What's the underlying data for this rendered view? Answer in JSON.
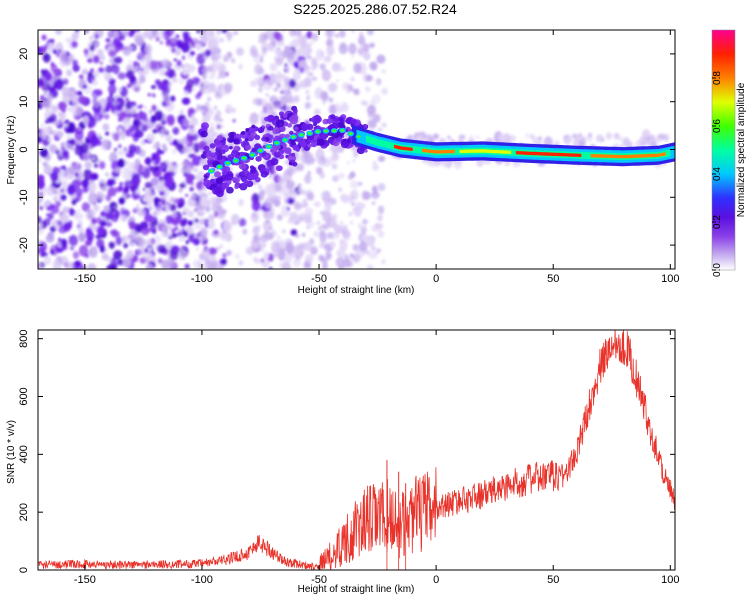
{
  "title": "S225.2025.286.07.52.R24",
  "chart_data": [
    {
      "type": "heatmap",
      "name": "spectrogram",
      "xlabel": "Height of straight line (km)",
      "ylabel": "Frequency (Hz)",
      "xlim": [
        -170,
        102
      ],
      "ylim": [
        -25,
        25
      ],
      "xticks": [
        -150,
        -100,
        -50,
        0,
        50,
        100
      ],
      "yticks": [
        -20,
        -10,
        0,
        10,
        20
      ],
      "colorbar": {
        "label": "Normalized spectral amplitude",
        "range": [
          0,
          1
        ],
        "ticks": [
          "0.0",
          "0.2",
          "0.4",
          "0.6",
          "0.8"
        ],
        "tick_values": [
          0.0,
          0.2,
          0.4,
          0.6,
          0.8
        ],
        "colors": [
          "#ffffff",
          "#c8b0f0",
          "#8a40e8",
          "#5a10e0",
          "#3030ff",
          "#00c8ff",
          "#00ffa0",
          "#40ff00",
          "#e0ff00",
          "#ff8000",
          "#ff2000",
          "#ff0090"
        ]
      },
      "tone_path": [
        {
          "x": -98,
          "f": -5
        },
        {
          "x": -90,
          "f": -3
        },
        {
          "x": -80,
          "f": -1.5
        },
        {
          "x": -70,
          "f": 1
        },
        {
          "x": -60,
          "f": 2.8
        },
        {
          "x": -50,
          "f": 3.8
        },
        {
          "x": -40,
          "f": 4
        },
        {
          "x": -35,
          "f": 3
        },
        {
          "x": -25,
          "f": 1.5
        },
        {
          "x": -15,
          "f": 0.3
        },
        {
          "x": 0,
          "f": -0.5
        },
        {
          "x": 20,
          "f": -0.3
        },
        {
          "x": 40,
          "f": -0.8
        },
        {
          "x": 60,
          "f": -1.2
        },
        {
          "x": 80,
          "f": -1.5
        },
        {
          "x": 95,
          "f": -1.2
        },
        {
          "x": 102,
          "f": -0.5
        }
      ]
    },
    {
      "type": "line",
      "name": "snr",
      "xlabel": "Height of straight line (km)",
      "ylabel": "SNR (10 * v/v)",
      "xlim": [
        -170,
        102
      ],
      "ylim": [
        0,
        830
      ],
      "xticks": [
        -150,
        -100,
        -50,
        0,
        50,
        100
      ],
      "yticks": [
        0,
        200,
        400,
        600,
        800
      ],
      "color": "#e8322a",
      "series": [
        {
          "name": "SNR",
          "points": [
            [
              -170,
              18
            ],
            [
              -150,
              20
            ],
            [
              -130,
              18
            ],
            [
              -110,
              20
            ],
            [
              -100,
              22
            ],
            [
              -90,
              35
            ],
            [
              -80,
              60
            ],
            [
              -76,
              95
            ],
            [
              -72,
              75
            ],
            [
              -65,
              30
            ],
            [
              -55,
              15
            ],
            [
              -50,
              15
            ],
            [
              -45,
              45
            ],
            [
              -40,
              95
            ],
            [
              -35,
              130
            ],
            [
              -30,
              170
            ],
            [
              -25,
              180
            ],
            [
              -20,
              185
            ],
            [
              -15,
              150
            ],
            [
              -10,
              190
            ],
            [
              -5,
              200
            ],
            [
              0,
              215
            ],
            [
              10,
              240
            ],
            [
              20,
              260
            ],
            [
              30,
              290
            ],
            [
              40,
              315
            ],
            [
              50,
              325
            ],
            [
              55,
              330
            ],
            [
              60,
              400
            ],
            [
              65,
              560
            ],
            [
              70,
              700
            ],
            [
              75,
              780
            ],
            [
              78,
              795
            ],
            [
              82,
              760
            ],
            [
              87,
              620
            ],
            [
              92,
              470
            ],
            [
              97,
              340
            ],
            [
              102,
              230
            ]
          ],
          "spikes": [
            [
              -21,
              380
            ],
            [
              -16,
              340
            ],
            [
              -13,
              300
            ]
          ]
        }
      ]
    }
  ]
}
